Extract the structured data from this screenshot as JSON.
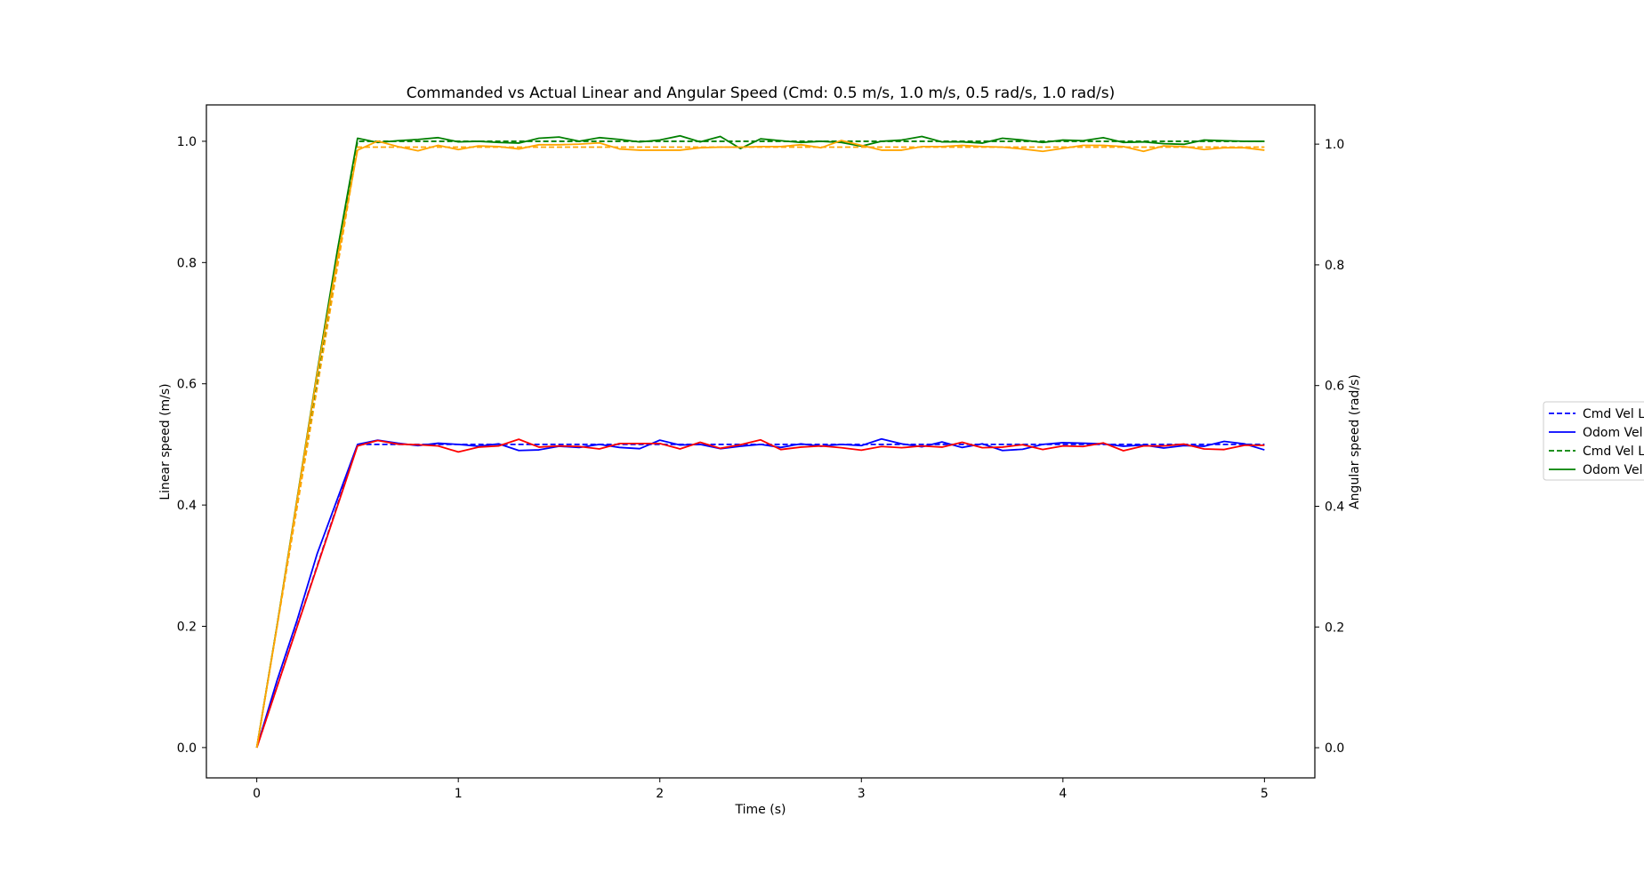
{
  "chart_data": {
    "type": "line",
    "title": "Commanded vs Actual Linear and Angular Speed (Cmd: 0.5 m/s, 1.0 m/s, 0.5 rad/s, 1.0 rad/s)",
    "xlabel": "Time (s)",
    "ylabel": "Linear speed (m/s)",
    "y2label": "Angular speed (rad/s)",
    "xlim": [
      -0.25,
      5.25
    ],
    "ylim": [
      -0.05,
      1.06
    ],
    "y2lim": [
      -0.05,
      1.065
    ],
    "xticks": [
      "0",
      "1",
      "2",
      "3",
      "4",
      "5"
    ],
    "yticks": [
      "0.0",
      "0.2",
      "0.4",
      "0.6",
      "0.8",
      "1.0"
    ],
    "y2ticks": [
      "0.0",
      "0.2",
      "0.4",
      "0.6",
      "0.8",
      "1.0"
    ],
    "grid": false,
    "legend": {
      "placement": "right, outside plot (clipped)",
      "entries": [
        "Cmd Vel L",
        "Odom Vel",
        "Cmd Vel L",
        "Odom Vel"
      ]
    },
    "series": [
      {
        "axis": "left",
        "color": "#0000ff",
        "style": "dashed",
        "x": [
          0,
          0.5,
          5
        ],
        "values": [
          0.0,
          0.5,
          0.5
        ]
      },
      {
        "axis": "left",
        "color": "#0000ff",
        "style": "solid",
        "x": [
          0,
          0.1,
          0.2,
          0.3,
          0.4,
          0.5,
          0.6,
          0.7,
          0.8,
          0.9,
          1.0,
          1.1,
          1.2,
          1.3,
          1.4,
          1.5,
          1.6,
          1.7,
          1.8,
          1.9,
          2.0,
          2.1,
          2.2,
          2.3,
          2.4,
          2.5,
          2.6,
          2.7,
          2.8,
          2.9,
          3.0,
          3.1,
          3.2,
          3.3,
          3.4,
          3.5,
          3.6,
          3.7,
          3.8,
          3.9,
          4.0,
          4.1,
          4.2,
          4.3,
          4.4,
          4.5,
          4.6,
          4.7,
          4.8,
          4.9,
          5.0
        ],
        "values": [
          0.0,
          0.11,
          0.21,
          0.32,
          0.41,
          0.5,
          0.507,
          0.502,
          0.498,
          0.502,
          0.5,
          0.497,
          0.501,
          0.49,
          0.491,
          0.497,
          0.495,
          0.5,
          0.495,
          0.493,
          0.507,
          0.499,
          0.5,
          0.493,
          0.497,
          0.5,
          0.495,
          0.501,
          0.497,
          0.5,
          0.498,
          0.509,
          0.501,
          0.496,
          0.504,
          0.495,
          0.501,
          0.49,
          0.492,
          0.5,
          0.503,
          0.502,
          0.501,
          0.497,
          0.499,
          0.494,
          0.498,
          0.497,
          0.505,
          0.501,
          0.491
        ]
      },
      {
        "axis": "left",
        "color": "#008000",
        "style": "dashed",
        "x": [
          0,
          0.5,
          5
        ],
        "values": [
          0.0,
          1.0,
          1.0
        ]
      },
      {
        "axis": "left",
        "color": "#008000",
        "style": "solid",
        "x": [
          0,
          0.1,
          0.2,
          0.3,
          0.4,
          0.5,
          0.6,
          0.7,
          0.8,
          0.9,
          1.0,
          1.1,
          1.2,
          1.3,
          1.4,
          1.5,
          1.6,
          1.7,
          1.8,
          1.9,
          2.0,
          2.1,
          2.2,
          2.3,
          2.4,
          2.5,
          2.6,
          2.7,
          2.8,
          2.9,
          3.0,
          3.1,
          3.2,
          3.3,
          3.4,
          3.5,
          3.6,
          3.7,
          3.8,
          3.9,
          4.0,
          4.1,
          4.2,
          4.3,
          4.4,
          4.5,
          4.6,
          4.7,
          4.8,
          4.9,
          5.0
        ],
        "values": [
          0.0,
          0.2,
          0.41,
          0.62,
          0.82,
          1.005,
          0.998,
          1.001,
          1.003,
          1.006,
          0.999,
          1.0,
          0.998,
          0.997,
          1.005,
          1.007,
          1.0,
          1.006,
          1.003,
          0.999,
          1.002,
          1.009,
          0.999,
          1.008,
          0.988,
          1.004,
          1.001,
          0.998,
          1.0,
          0.998,
          0.992,
          1.0,
          1.002,
          1.008,
          0.999,
          0.999,
          0.997,
          1.005,
          1.002,
          0.998,
          1.002,
          1.001,
          1.006,
          0.998,
          0.999,
          0.996,
          0.995,
          1.002,
          1.001,
          1.0,
          1.0
        ]
      },
      {
        "axis": "right",
        "color": "#ff0000",
        "style": "solid",
        "x": [
          0,
          0.1,
          0.2,
          0.3,
          0.4,
          0.5,
          0.6,
          0.7,
          0.8,
          0.9,
          1.0,
          1.1,
          1.2,
          1.3,
          1.4,
          1.5,
          1.6,
          1.7,
          1.8,
          1.9,
          2.0,
          2.1,
          2.2,
          2.3,
          2.4,
          2.5,
          2.6,
          2.7,
          2.8,
          2.9,
          3.0,
          3.1,
          3.2,
          3.3,
          3.4,
          3.5,
          3.6,
          3.7,
          3.8,
          3.9,
          4.0,
          4.1,
          4.2,
          4.3,
          4.4,
          4.5,
          4.6,
          4.7,
          4.8,
          4.9,
          5.0
        ],
        "values": [
          0.0,
          0.1,
          0.2,
          0.3,
          0.4,
          0.5,
          0.509,
          0.503,
          0.502,
          0.5,
          0.49,
          0.498,
          0.5,
          0.511,
          0.498,
          0.5,
          0.499,
          0.495,
          0.504,
          0.504,
          0.504,
          0.495,
          0.506,
          0.496,
          0.502,
          0.51,
          0.494,
          0.498,
          0.5,
          0.497,
          0.493,
          0.499,
          0.497,
          0.5,
          0.498,
          0.506,
          0.497,
          0.498,
          0.502,
          0.494,
          0.5,
          0.499,
          0.505,
          0.492,
          0.5,
          0.5,
          0.503,
          0.495,
          0.494,
          0.501,
          0.501
        ]
      },
      {
        "axis": "right",
        "color": "#ffa500",
        "style": "dashed",
        "x": [
          0,
          0.5,
          5
        ],
        "values": [
          0.0,
          0.995,
          0.995
        ]
      },
      {
        "axis": "right",
        "color": "#ffa500",
        "style": "solid",
        "x": [
          0,
          0.1,
          0.2,
          0.3,
          0.4,
          0.5,
          0.6,
          0.7,
          0.8,
          0.9,
          1.0,
          1.1,
          1.2,
          1.3,
          1.4,
          1.5,
          1.6,
          1.7,
          1.8,
          1.9,
          2.0,
          2.1,
          2.2,
          2.3,
          2.4,
          2.5,
          2.6,
          2.7,
          2.8,
          2.9,
          3.0,
          3.1,
          3.2,
          3.3,
          3.4,
          3.5,
          3.6,
          3.7,
          3.8,
          3.9,
          4.0,
          4.1,
          4.2,
          4.3,
          4.4,
          4.5,
          4.6,
          4.7,
          4.8,
          4.9,
          5.0
        ],
        "values": [
          0.0,
          0.2,
          0.41,
          0.62,
          0.81,
          0.99,
          1.005,
          0.996,
          0.989,
          0.998,
          0.991,
          0.997,
          0.996,
          0.992,
          0.999,
          0.999,
          1.0,
          1.002,
          0.992,
          0.99,
          0.99,
          0.99,
          0.994,
          0.995,
          0.995,
          0.996,
          0.996,
          0.999,
          0.994,
          1.006,
          0.998,
          0.99,
          0.99,
          0.996,
          0.996,
          0.998,
          0.996,
          0.995,
          0.992,
          0.988,
          0.993,
          0.998,
          0.998,
          0.996,
          0.988,
          0.997,
          0.996,
          0.991,
          0.994,
          0.994,
          0.99
        ]
      }
    ]
  }
}
